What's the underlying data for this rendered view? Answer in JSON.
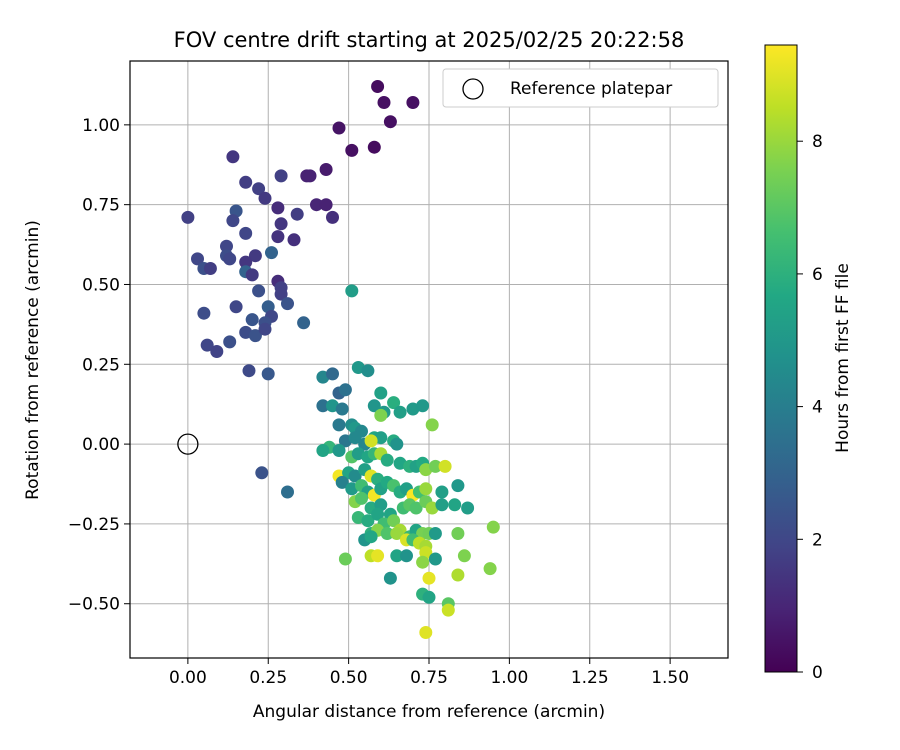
{
  "chart_data": {
    "type": "scatter",
    "title": "FOV centre drift starting at 2025/02/25 20:22:58",
    "xlabel": "Angular distance from reference (arcmin)",
    "ylabel": "Rotation from reference (arcmin)",
    "xlim": [
      -0.18,
      1.68
    ],
    "ylim": [
      -0.67,
      1.2
    ],
    "xticks": [
      0.0,
      0.25,
      0.5,
      0.75,
      1.0,
      1.25,
      1.5
    ],
    "xtick_labels": [
      "0.00",
      "0.25",
      "0.50",
      "0.75",
      "1.00",
      "1.25",
      "1.50"
    ],
    "yticks": [
      -0.5,
      -0.25,
      0.0,
      0.25,
      0.5,
      0.75,
      1.0
    ],
    "ytick_labels": [
      "−0.50",
      "−0.25",
      "0.00",
      "0.25",
      "0.50",
      "0.75",
      "1.00"
    ],
    "grid": true,
    "legend": {
      "position": "top-right",
      "label": "Reference platepar"
    },
    "reference_point": {
      "x": 0.0,
      "y": 0.0
    },
    "colorbar": {
      "label": "Hours from first FF file",
      "range": [
        0,
        9.45
      ],
      "ticks": [
        0,
        2,
        4,
        6,
        8
      ],
      "tick_labels": [
        "0",
        "2",
        "4",
        "6",
        "8"
      ],
      "colormap": "viridis"
    },
    "points": [
      [
        0.59,
        1.12,
        0.3
      ],
      [
        0.61,
        1.07,
        0.4
      ],
      [
        0.7,
        1.07,
        0.4
      ],
      [
        0.63,
        1.01,
        0.4
      ],
      [
        0.47,
        0.99,
        0.5
      ],
      [
        0.51,
        0.92,
        0.4
      ],
      [
        0.58,
        0.93,
        0.3
      ],
      [
        0.43,
        0.86,
        0.7
      ],
      [
        0.14,
        0.9,
        1.5
      ],
      [
        0.18,
        0.82,
        1.7
      ],
      [
        0.29,
        0.84,
        1.8
      ],
      [
        0.37,
        0.84,
        0.9
      ],
      [
        0.38,
        0.84,
        0.9
      ],
      [
        0.22,
        0.8,
        1.8
      ],
      [
        0.24,
        0.77,
        1.6
      ],
      [
        0.28,
        0.74,
        1.2
      ],
      [
        0.4,
        0.75,
        1.0
      ],
      [
        0.43,
        0.75,
        0.9
      ],
      [
        0.45,
        0.71,
        1.3
      ],
      [
        0.0,
        0.71,
        1.8
      ],
      [
        0.15,
        0.73,
        2.5
      ],
      [
        0.14,
        0.7,
        2.0
      ],
      [
        0.34,
        0.72,
        1.7
      ],
      [
        0.29,
        0.69,
        1.5
      ],
      [
        0.18,
        0.66,
        2.0
      ],
      [
        0.28,
        0.65,
        1.4
      ],
      [
        0.33,
        0.64,
        1.3
      ],
      [
        0.12,
        0.62,
        2.0
      ],
      [
        0.12,
        0.59,
        2.2
      ],
      [
        0.13,
        0.58,
        2.0
      ],
      [
        0.03,
        0.58,
        2.0
      ],
      [
        0.21,
        0.59,
        1.6
      ],
      [
        0.26,
        0.6,
        3.0
      ],
      [
        0.05,
        0.55,
        2.3
      ],
      [
        0.07,
        0.55,
        1.7
      ],
      [
        0.18,
        0.57,
        1.5
      ],
      [
        0.18,
        0.54,
        3.0
      ],
      [
        0.2,
        0.53,
        1.6
      ],
      [
        0.28,
        0.51,
        1.2
      ],
      [
        0.29,
        0.49,
        1.8
      ],
      [
        0.29,
        0.47,
        1.8
      ],
      [
        0.22,
        0.48,
        2.3
      ],
      [
        0.31,
        0.44,
        2.4
      ],
      [
        0.15,
        0.43,
        2.0
      ],
      [
        0.05,
        0.41,
        2.2
      ],
      [
        0.25,
        0.43,
        2.8
      ],
      [
        0.26,
        0.4,
        2.0
      ],
      [
        0.2,
        0.39,
        2.5
      ],
      [
        0.24,
        0.38,
        2.3
      ],
      [
        0.36,
        0.38,
        3.0
      ],
      [
        0.18,
        0.35,
        2.2
      ],
      [
        0.21,
        0.34,
        2.4
      ],
      [
        0.24,
        0.36,
        2.0
      ],
      [
        0.13,
        0.32,
        2.3
      ],
      [
        0.06,
        0.31,
        2.0
      ],
      [
        0.09,
        0.29,
        1.9
      ],
      [
        0.51,
        0.48,
        5.2
      ],
      [
        0.19,
        0.23,
        2.1
      ],
      [
        0.25,
        0.22,
        2.6
      ],
      [
        0.23,
        -0.09,
        2.4
      ],
      [
        0.31,
        -0.15,
        3.4
      ],
      [
        0.42,
        0.21,
        4.3
      ],
      [
        0.45,
        0.22,
        3.2
      ],
      [
        0.53,
        0.24,
        5.0
      ],
      [
        0.56,
        0.23,
        4.6
      ],
      [
        0.47,
        0.16,
        3.0
      ],
      [
        0.49,
        0.17,
        3.5
      ],
      [
        0.6,
        0.16,
        5.4
      ],
      [
        0.42,
        0.12,
        3.5
      ],
      [
        0.45,
        0.12,
        4.9
      ],
      [
        0.48,
        0.11,
        3.8
      ],
      [
        0.58,
        0.12,
        4.9
      ],
      [
        0.61,
        0.1,
        5.1
      ],
      [
        0.64,
        0.13,
        5.9
      ],
      [
        0.66,
        0.1,
        5.3
      ],
      [
        0.7,
        0.11,
        5.1
      ],
      [
        0.73,
        0.12,
        5.0
      ],
      [
        0.6,
        0.09,
        7.6
      ],
      [
        0.76,
        0.06,
        7.7
      ],
      [
        0.47,
        0.06,
        3.8
      ],
      [
        0.51,
        0.06,
        4.6
      ],
      [
        0.52,
        0.05,
        5.0
      ],
      [
        0.54,
        0.04,
        4.4
      ],
      [
        0.58,
        0.02,
        5.6
      ],
      [
        0.6,
        0.02,
        5.3
      ],
      [
        0.64,
        0.01,
        5.8
      ],
      [
        0.65,
        0.0,
        4.8
      ],
      [
        0.49,
        0.01,
        3.7
      ],
      [
        0.52,
        0.02,
        4.4
      ],
      [
        0.55,
        0.0,
        4.3
      ],
      [
        0.57,
        0.01,
        8.8
      ],
      [
        0.44,
        -0.01,
        6.2
      ],
      [
        0.42,
        -0.02,
        5.5
      ],
      [
        0.47,
        -0.02,
        5.0
      ],
      [
        0.51,
        -0.04,
        6.9
      ],
      [
        0.53,
        -0.03,
        5.2
      ],
      [
        0.56,
        -0.04,
        5.6
      ],
      [
        0.58,
        -0.03,
        6.2
      ],
      [
        0.6,
        -0.03,
        8.2
      ],
      [
        0.62,
        -0.05,
        5.8
      ],
      [
        0.66,
        -0.06,
        5.6
      ],
      [
        0.69,
        -0.07,
        6.0
      ],
      [
        0.71,
        -0.07,
        5.4
      ],
      [
        0.73,
        -0.06,
        5.7
      ],
      [
        0.74,
        -0.08,
        7.8
      ],
      [
        0.77,
        -0.07,
        7.4
      ],
      [
        0.8,
        -0.07,
        8.8
      ],
      [
        0.47,
        -0.1,
        9.3
      ],
      [
        0.5,
        -0.09,
        5.5
      ],
      [
        0.52,
        -0.1,
        4.5
      ],
      [
        0.55,
        -0.08,
        5.3
      ],
      [
        0.57,
        -0.1,
        9.0
      ],
      [
        0.59,
        -0.11,
        5.9
      ],
      [
        0.48,
        -0.12,
        4.1
      ],
      [
        0.51,
        -0.14,
        5.1
      ],
      [
        0.54,
        -0.13,
        6.5
      ],
      [
        0.56,
        -0.15,
        5.4
      ],
      [
        0.58,
        -0.16,
        9.3
      ],
      [
        0.6,
        -0.14,
        5.4
      ],
      [
        0.62,
        -0.12,
        5.7
      ],
      [
        0.64,
        -0.13,
        6.7
      ],
      [
        0.66,
        -0.15,
        5.8
      ],
      [
        0.68,
        -0.14,
        5.3
      ],
      [
        0.7,
        -0.16,
        9.4
      ],
      [
        0.72,
        -0.15,
        6.6
      ],
      [
        0.74,
        -0.14,
        8.0
      ],
      [
        0.79,
        -0.15,
        5.3
      ],
      [
        0.84,
        -0.13,
        5.0
      ],
      [
        0.52,
        -0.18,
        7.7
      ],
      [
        0.54,
        -0.17,
        6.8
      ],
      [
        0.57,
        -0.2,
        5.8
      ],
      [
        0.6,
        -0.19,
        5.2
      ],
      [
        0.63,
        -0.22,
        5.5
      ],
      [
        0.67,
        -0.2,
        6.5
      ],
      [
        0.69,
        -0.19,
        7.0
      ],
      [
        0.71,
        -0.2,
        6.8
      ],
      [
        0.74,
        -0.18,
        7.3
      ],
      [
        0.76,
        -0.2,
        8.0
      ],
      [
        0.79,
        -0.19,
        5.3
      ],
      [
        0.83,
        -0.19,
        5.5
      ],
      [
        0.87,
        -0.2,
        5.2
      ],
      [
        0.95,
        -0.26,
        7.7
      ],
      [
        0.53,
        -0.23,
        6.3
      ],
      [
        0.56,
        -0.24,
        5.8
      ],
      [
        0.59,
        -0.22,
        5.5
      ],
      [
        0.61,
        -0.25,
        6.5
      ],
      [
        0.64,
        -0.24,
        7.4
      ],
      [
        0.66,
        -0.27,
        8.2
      ],
      [
        0.69,
        -0.29,
        6.3
      ],
      [
        0.71,
        -0.27,
        5.5
      ],
      [
        0.73,
        -0.28,
        7.5
      ],
      [
        0.75,
        -0.28,
        7.4
      ],
      [
        0.77,
        -0.28,
        5.1
      ],
      [
        0.84,
        -0.28,
        7.4
      ],
      [
        0.57,
        -0.28,
        6.0
      ],
      [
        0.59,
        -0.27,
        7.7
      ],
      [
        0.62,
        -0.28,
        6.8
      ],
      [
        0.65,
        -0.28,
        8.0
      ],
      [
        0.68,
        -0.3,
        8.9
      ],
      [
        0.7,
        -0.3,
        6.5
      ],
      [
        0.72,
        -0.31,
        8.5
      ],
      [
        0.74,
        -0.32,
        8.2
      ],
      [
        0.55,
        -0.3,
        4.9
      ],
      [
        0.57,
        -0.29,
        5.6
      ],
      [
        0.74,
        -0.34,
        8.7
      ],
      [
        0.49,
        -0.36,
        7.3
      ],
      [
        0.57,
        -0.35,
        8.5
      ],
      [
        0.59,
        -0.35,
        9.1
      ],
      [
        0.65,
        -0.35,
        5.5
      ],
      [
        0.68,
        -0.35,
        4.8
      ],
      [
        0.77,
        -0.36,
        5.0
      ],
      [
        0.86,
        -0.35,
        7.6
      ],
      [
        0.73,
        -0.37,
        7.8
      ],
      [
        0.75,
        -0.42,
        9.1
      ],
      [
        0.84,
        -0.41,
        8.3
      ],
      [
        0.94,
        -0.39,
        7.7
      ],
      [
        0.63,
        -0.42,
        4.8
      ],
      [
        0.73,
        -0.47,
        6.0
      ],
      [
        0.75,
        -0.48,
        5.5
      ],
      [
        0.81,
        -0.5,
        7.0
      ],
      [
        0.81,
        -0.52,
        8.7
      ],
      [
        0.74,
        -0.59,
        9.0
      ]
    ]
  }
}
